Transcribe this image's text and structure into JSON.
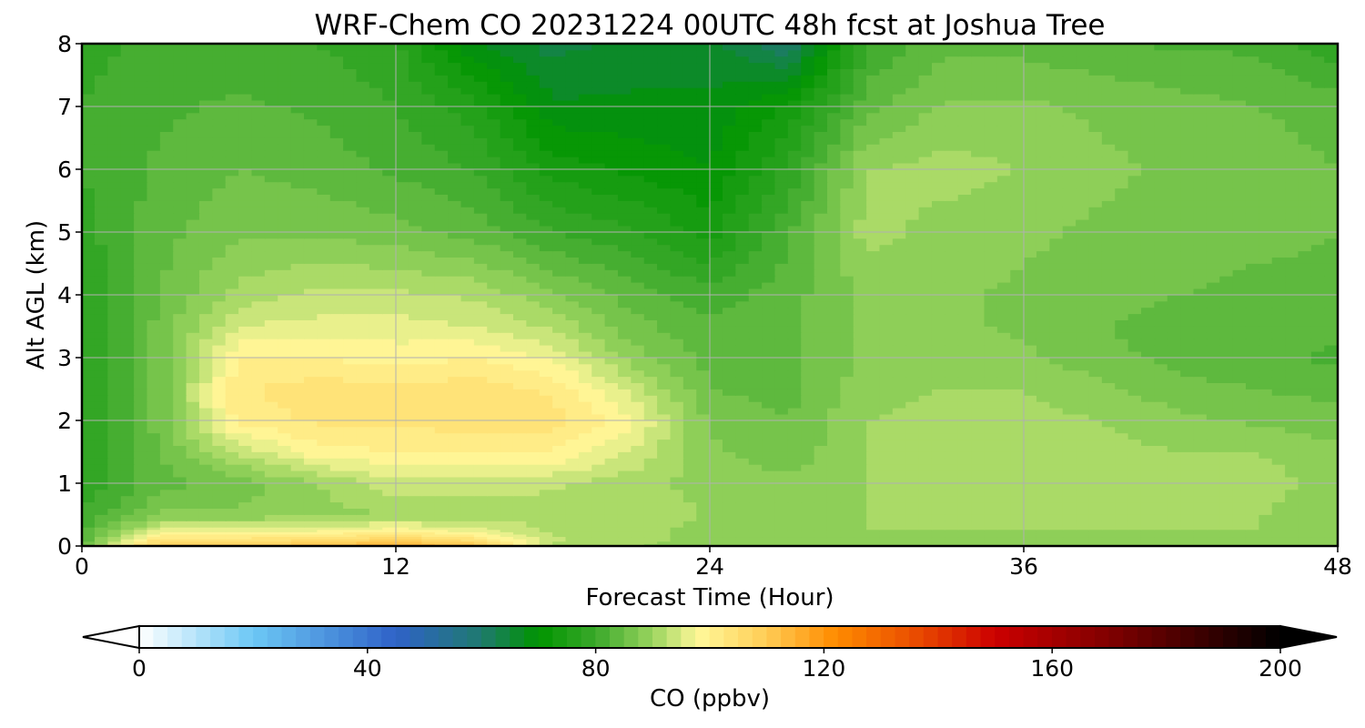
{
  "chart_data": {
    "type": "heatmap",
    "title": "WRF-Chem CO  20231224 00UTC 48h fcst at Joshua Tree",
    "xlabel": "Forecast Time (Hour)",
    "ylabel": "Alt AGL (km)",
    "xlim": [
      0,
      48
    ],
    "ylim": [
      0,
      8
    ],
    "x_ticks": [
      "0",
      "12",
      "24",
      "36",
      "48"
    ],
    "y_ticks": [
      "0",
      "1",
      "2",
      "3",
      "4",
      "5",
      "6",
      "7",
      "8"
    ],
    "grid": true,
    "colorbar": {
      "label": "CO  (ppbv)",
      "range": [
        0,
        200
      ],
      "ticks": [
        "0",
        "40",
        "80",
        "120",
        "160",
        "200"
      ],
      "extend": "both",
      "under_color": "#ffffff",
      "over_color": "#000000",
      "stops": [
        {
          "v": 0,
          "c": "#ffffff"
        },
        {
          "v": 20,
          "c": "#6cc8f5"
        },
        {
          "v": 45,
          "c": "#2f62c8"
        },
        {
          "v": 60,
          "c": "#1f7a6e"
        },
        {
          "v": 70,
          "c": "#009400"
        },
        {
          "v": 80,
          "c": "#3aa82a"
        },
        {
          "v": 90,
          "c": "#9ad55e"
        },
        {
          "v": 98,
          "c": "#fff899"
        },
        {
          "v": 110,
          "c": "#ffcc55"
        },
        {
          "v": 122,
          "c": "#ff8c00"
        },
        {
          "v": 137,
          "c": "#e84800"
        },
        {
          "v": 150,
          "c": "#cc0000"
        },
        {
          "v": 170,
          "c": "#800000"
        },
        {
          "v": 200,
          "c": "#000000"
        }
      ]
    },
    "x": [
      0,
      3,
      6,
      9,
      12,
      15,
      18,
      21,
      24,
      27,
      30,
      33,
      36,
      39,
      42,
      45,
      48
    ],
    "y": [
      0,
      0.1,
      0.25,
      0.5,
      1,
      1.5,
      2,
      2.5,
      3,
      3.5,
      4,
      5,
      6,
      7,
      8
    ],
    "z": [
      [
        86,
        110,
        110,
        112,
        116,
        112,
        92,
        90,
        88,
        89,
        89,
        89,
        89,
        89,
        89,
        89,
        89
      ],
      [
        83,
        104,
        104,
        105,
        108,
        104,
        93,
        91,
        89,
        89,
        89,
        89,
        89,
        89,
        89,
        89,
        89
      ],
      [
        82,
        96,
        96,
        97,
        99,
        96,
        92,
        91,
        89,
        89,
        90,
        90,
        90,
        90,
        90,
        90,
        89
      ],
      [
        80,
        88,
        88,
        89,
        90,
        91,
        91,
        91,
        90,
        89,
        90,
        90,
        90,
        90,
        90,
        90,
        89
      ],
      [
        78,
        84,
        86,
        90,
        94,
        94,
        93,
        91,
        89,
        88,
        90,
        91,
        91,
        91,
        91,
        91,
        89
      ],
      [
        78,
        85,
        93,
        99,
        100,
        100,
        100,
        95,
        88,
        86,
        90,
        91,
        91,
        91,
        90,
        90,
        88
      ],
      [
        77,
        86,
        101,
        103,
        103,
        104,
        104,
        98,
        87,
        85,
        90,
        91,
        91,
        90,
        88,
        87,
        86
      ],
      [
        77,
        86,
        102,
        104,
        103,
        104,
        102,
        94,
        85,
        84,
        89,
        90,
        90,
        88,
        86,
        85,
        84
      ],
      [
        77,
        86,
        100,
        100,
        99,
        100,
        97,
        89,
        84,
        84,
        88,
        89,
        88,
        86,
        84,
        83,
        82
      ],
      [
        77,
        86,
        95,
        96,
        96,
        95,
        92,
        86,
        83,
        84,
        88,
        88,
        87,
        85,
        84,
        84,
        83
      ],
      [
        77,
        85,
        91,
        93,
        93,
        92,
        88,
        84,
        81,
        84,
        88,
        88,
        87,
        86,
        85,
        84,
        84
      ],
      [
        79,
        84,
        87,
        87,
        86,
        84,
        80,
        78,
        74,
        82,
        91,
        89,
        88,
        87,
        87,
        86,
        85
      ],
      [
        80,
        83,
        85,
        84,
        82,
        80,
        74,
        72,
        70,
        78,
        90,
        91,
        90,
        88,
        87,
        86,
        85
      ],
      [
        80,
        82,
        83,
        82,
        80,
        76,
        68,
        68,
        68,
        73,
        84,
        88,
        88,
        87,
        86,
        85,
        84
      ],
      [
        79,
        81,
        81,
        80,
        78,
        68,
        64,
        66,
        66,
        60,
        80,
        84,
        84,
        83,
        82,
        82,
        78
      ]
    ]
  }
}
